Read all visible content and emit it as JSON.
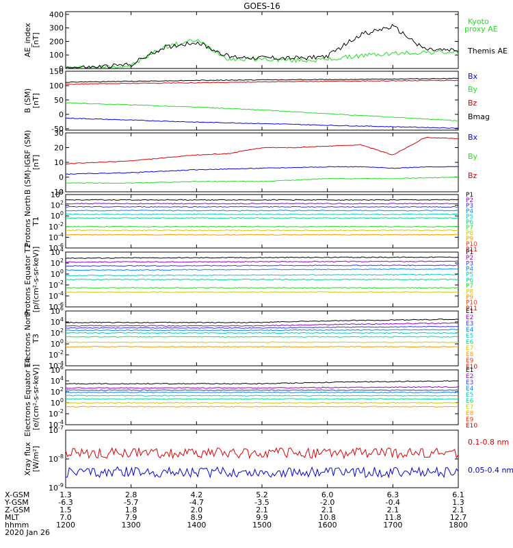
{
  "title": "GOES-16",
  "x_axis": {
    "tick_labels": [
      "1200",
      "1300",
      "1400",
      "1500",
      "1600",
      "1700",
      "1800"
    ],
    "hhmm_label": "hhmm",
    "date_label": "2020 Jan 26",
    "ephemeris": [
      {
        "label": "X-GSM",
        "values": [
          "1.3",
          "2.8",
          "4.2",
          "5.2",
          "6.0",
          "6.3",
          "6.1"
        ]
      },
      {
        "label": "Y-GSM",
        "values": [
          "-6.3",
          "-5.7",
          "-4.7",
          "-3.5",
          "-2.0",
          "-0.4",
          "1.3"
        ]
      },
      {
        "label": "Z-GSM",
        "values": [
          "1.5",
          "1.8",
          "2.0",
          "2.1",
          "2.1",
          "2.1",
          "2.1"
        ]
      },
      {
        "label": "MLT",
        "values": [
          "7.0",
          "7.9",
          "8.9",
          "9.9",
          "10.8",
          "11.8",
          "12.7"
        ]
      }
    ]
  },
  "chart_data": [
    {
      "type": "line",
      "ylabel": "AE_index [nT]",
      "ylim": [
        0,
        420
      ],
      "yticks": [
        "0",
        "100",
        "200",
        "300",
        "400"
      ],
      "x": [
        "1200",
        "1230",
        "1300",
        "1330",
        "1400",
        "1430",
        "1500",
        "1530",
        "1600",
        "1630",
        "1700",
        "1730",
        "1800"
      ],
      "series": [
        {
          "name": "Kyoto proxy AE",
          "color": "#22dd22",
          "values": [
            5,
            8,
            20,
            160,
            210,
            70,
            70,
            60,
            65,
            95,
            110,
            120,
            120
          ]
        },
        {
          "name": "Themis AE",
          "color": "#000000",
          "values": [
            5,
            10,
            30,
            155,
            195,
            85,
            80,
            75,
            90,
            250,
            310,
            140,
            130
          ]
        }
      ]
    },
    {
      "type": "line",
      "ylabel": "B (SM) [nT]",
      "ylim": [
        -55,
        150
      ],
      "yticks": [
        "-50",
        "0",
        "50",
        "100",
        "150"
      ],
      "x": [
        "1200",
        "1300",
        "1400",
        "1500",
        "1600",
        "1700",
        "1800"
      ],
      "series": [
        {
          "name": "Bx",
          "color": "#0000ff",
          "values": [
            -13,
            -20,
            -27,
            -32,
            -38,
            -43,
            -48
          ]
        },
        {
          "name": "By",
          "color": "#22dd22",
          "values": [
            40,
            33,
            25,
            15,
            2,
            -10,
            -22
          ]
        },
        {
          "name": "Bz",
          "color": "#dd0000",
          "values": [
            105,
            108,
            110,
            113,
            115,
            117,
            118
          ]
        },
        {
          "name": "Bmag",
          "color": "#000000",
          "values": [
            112,
            115,
            118,
            120,
            121,
            123,
            125
          ]
        }
      ]
    },
    {
      "type": "line",
      "ylabel": "B (SM)-IGRF (SM) [nT]",
      "ylim": [
        -10,
        30
      ],
      "yticks": [
        "-10",
        "0",
        "10",
        "20",
        "30"
      ],
      "x": [
        "1200",
        "1230",
        "1300",
        "1330",
        "1400",
        "1430",
        "1500",
        "1530",
        "1600",
        "1630",
        "1700",
        "1730",
        "1800"
      ],
      "series": [
        {
          "name": "Bx",
          "color": "#0000ff",
          "values": [
            2,
            2.5,
            3,
            4,
            5,
            5.5,
            6,
            6.5,
            7,
            7,
            6,
            7,
            7
          ]
        },
        {
          "name": "By",
          "color": "#22dd22",
          "values": [
            -4,
            -4,
            -4,
            -3.5,
            -3,
            -3,
            -3,
            -2,
            -1,
            -1,
            -1,
            -0.5,
            0
          ]
        },
        {
          "name": "Bz",
          "color": "#dd0000",
          "values": [
            9,
            10,
            11,
            13,
            15,
            16,
            20,
            20,
            21,
            22,
            15,
            27,
            26
          ]
        }
      ]
    },
    {
      "type": "line",
      "ylabel": "Protons North T1",
      "log_scale": true,
      "ylim": [
        1e-06,
        10000.0
      ],
      "yticks": [
        "10^4",
        "10^2",
        "10^0",
        "10^-2",
        "10^-4",
        "10^-6"
      ],
      "series": [
        {
          "name": "P1",
          "color": "#000000",
          "values": [
            1000,
            1000
          ]
        },
        {
          "name": "P2",
          "color": "#9900cc",
          "values": [
            200,
            200
          ]
        },
        {
          "name": "P3",
          "color": "#3333ff",
          "values": [
            50,
            50
          ]
        },
        {
          "name": "P4",
          "color": "#0088ff",
          "values": [
            10,
            10
          ]
        },
        {
          "name": "P5",
          "color": "#00cccc",
          "values": [
            2,
            2
          ]
        },
        {
          "name": "P6",
          "color": "#00dd88",
          "values": [
            0.4,
            0.4
          ]
        },
        {
          "name": "P7",
          "color": "#22dd22",
          "values": [
            0.01,
            0.01
          ]
        },
        {
          "name": "P8",
          "color": "#cccc00",
          "values": [
            0.002,
            0.002
          ]
        },
        {
          "name": "P9",
          "color": "#ff9900",
          "values": [
            0.0003,
            0.0003
          ]
        },
        {
          "name": "P10",
          "color": "#ff3300",
          "values": []
        },
        {
          "name": "P11",
          "color": "#cc0000",
          "values": []
        }
      ]
    },
    {
      "type": "line",
      "ylabel": "Protons Equator T2 [p/(cm²-s-sr-keV)]",
      "log_scale": true,
      "ylim": [
        1e-06,
        10000.0
      ],
      "yticks": [
        "10^4",
        "10^2",
        "10^0",
        "10^-2",
        "10^-4",
        "10^-6"
      ],
      "series": [
        {
          "name": "P1",
          "color": "#000000",
          "values": [
            800,
            1200
          ]
        },
        {
          "name": "P2",
          "color": "#9900cc",
          "values": [
            150,
            200
          ]
        },
        {
          "name": "P3",
          "color": "#3333ff",
          "values": [
            30,
            40
          ]
        },
        {
          "name": "P4",
          "color": "#0088ff",
          "values": [
            5,
            8
          ]
        },
        {
          "name": "P5",
          "color": "#00cccc",
          "values": [
            0.5,
            0.8
          ]
        },
        {
          "name": "P6",
          "color": "#00dd88",
          "values": [
            0.1,
            0.1
          ]
        },
        {
          "name": "P7",
          "color": "#22dd22",
          "values": [
            0.003,
            0.003
          ]
        },
        {
          "name": "P8",
          "color": "#cccc00",
          "values": [
            0.0005,
            0.0005
          ]
        },
        {
          "name": "P9",
          "color": "#ff9900",
          "values": []
        },
        {
          "name": "P10",
          "color": "#ff3300",
          "values": []
        },
        {
          "name": "P11",
          "color": "#cc0000",
          "values": []
        }
      ]
    },
    {
      "type": "line",
      "ylabel": "Electrons North T3",
      "log_scale": true,
      "ylim": [
        0.0001,
        1000000.0
      ],
      "yticks": [
        "10^6",
        "10^4",
        "10^2",
        "10^0",
        "10^-2",
        "10^-4"
      ],
      "series": [
        {
          "name": "E1",
          "color": "#000000",
          "values": [
            8000,
            8000,
            30000
          ]
        },
        {
          "name": "E2",
          "color": "#9900cc",
          "values": [
            2000,
            2000,
            6000
          ]
        },
        {
          "name": "E3",
          "color": "#3333ff",
          "values": [
            800,
            800,
            1500
          ]
        },
        {
          "name": "E4",
          "color": "#0088ff",
          "values": [
            300,
            300,
            400
          ]
        },
        {
          "name": "E5",
          "color": "#00cccc",
          "values": [
            100,
            100,
            100
          ]
        },
        {
          "name": "E6",
          "color": "#00dd88",
          "values": [
            20,
            20,
            20
          ]
        },
        {
          "name": "E7",
          "color": "#cccc00",
          "values": [
            2,
            2,
            2
          ]
        },
        {
          "name": "E8",
          "color": "#ff9900",
          "values": [
            0.3,
            0.3,
            0.3
          ]
        },
        {
          "name": "E9",
          "color": "#ff3300",
          "values": []
        },
        {
          "name": "E10",
          "color": "#cc0000",
          "values": []
        }
      ]
    },
    {
      "type": "line",
      "ylabel": "Electrons Equator T4 [e/(cm²-s-sr-keV)]",
      "log_scale": true,
      "ylim": [
        0.0001,
        1000000.0
      ],
      "yticks": [
        "10^6",
        "10^4",
        "10^2",
        "10^0",
        "10^-2",
        "10^-4"
      ],
      "series": [
        {
          "name": "E1",
          "color": "#000000",
          "values": [
            3000,
            3000,
            10000
          ]
        },
        {
          "name": "E2",
          "color": "#9900cc",
          "values": [
            500,
            500,
            800
          ]
        },
        {
          "name": "E3",
          "color": "#3333ff",
          "values": [
            200,
            200,
            200
          ]
        },
        {
          "name": "E4",
          "color": "#0088ff",
          "values": [
            80,
            80,
            80
          ]
        },
        {
          "name": "E5",
          "color": "#00cccc",
          "values": [
            20,
            20,
            20
          ]
        },
        {
          "name": "E6",
          "color": "#00dd88",
          "values": [
            5,
            5,
            5
          ]
        },
        {
          "name": "E7",
          "color": "#cccc00",
          "values": [
            1,
            1,
            1
          ]
        },
        {
          "name": "E8",
          "color": "#ff9900",
          "values": [
            0.2,
            0.2,
            0.2
          ]
        },
        {
          "name": "E9",
          "color": "#ff3300",
          "values": []
        },
        {
          "name": "E10",
          "color": "#cc0000",
          "values": []
        }
      ]
    },
    {
      "type": "line",
      "ylabel": "Xray flux [W/m²]",
      "log_scale": true,
      "ylim": [
        1e-09,
        1e-07
      ],
      "yticks": [
        "10^-7",
        "10^-8",
        "10^-9"
      ],
      "series": [
        {
          "name": "0.1-0.8 nm",
          "color": "#dd0000",
          "values": [
            1.6e-08,
            1.6e-08
          ]
        },
        {
          "name": "0.05-0.4 nm",
          "color": "#0000dd",
          "values": [
            3.5e-09,
            3.5e-09
          ]
        }
      ]
    }
  ]
}
